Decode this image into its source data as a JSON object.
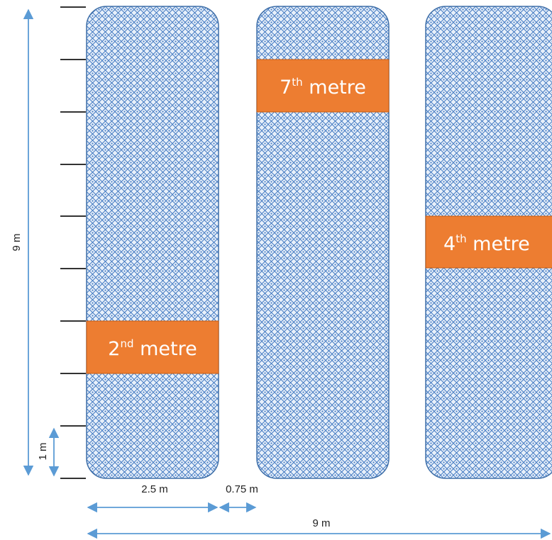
{
  "colors": {
    "strip_fill": "#e8f0fa",
    "strip_pattern": "#4a7fc4",
    "strip_border": "#3f6fa8",
    "band_fill": "#ed7d31",
    "band_border": "#c55a11",
    "arrow": "#5b9bd5",
    "tick": "#333333"
  },
  "dimensions": {
    "total_height": "9 m",
    "unit_height": "1 m",
    "strip_width": "2.5 m",
    "gap_width": "0.75 m",
    "total_width": "9 m"
  },
  "strips": [
    {
      "band_number": "2",
      "band_suffix": "nd",
      "band_word": "metre",
      "band_metre": 2
    },
    {
      "band_number": "7",
      "band_suffix": "th",
      "band_word": "metre",
      "band_metre": 7
    },
    {
      "band_number": "4",
      "band_suffix": "th",
      "band_word": "metre",
      "band_metre": 4
    }
  ]
}
